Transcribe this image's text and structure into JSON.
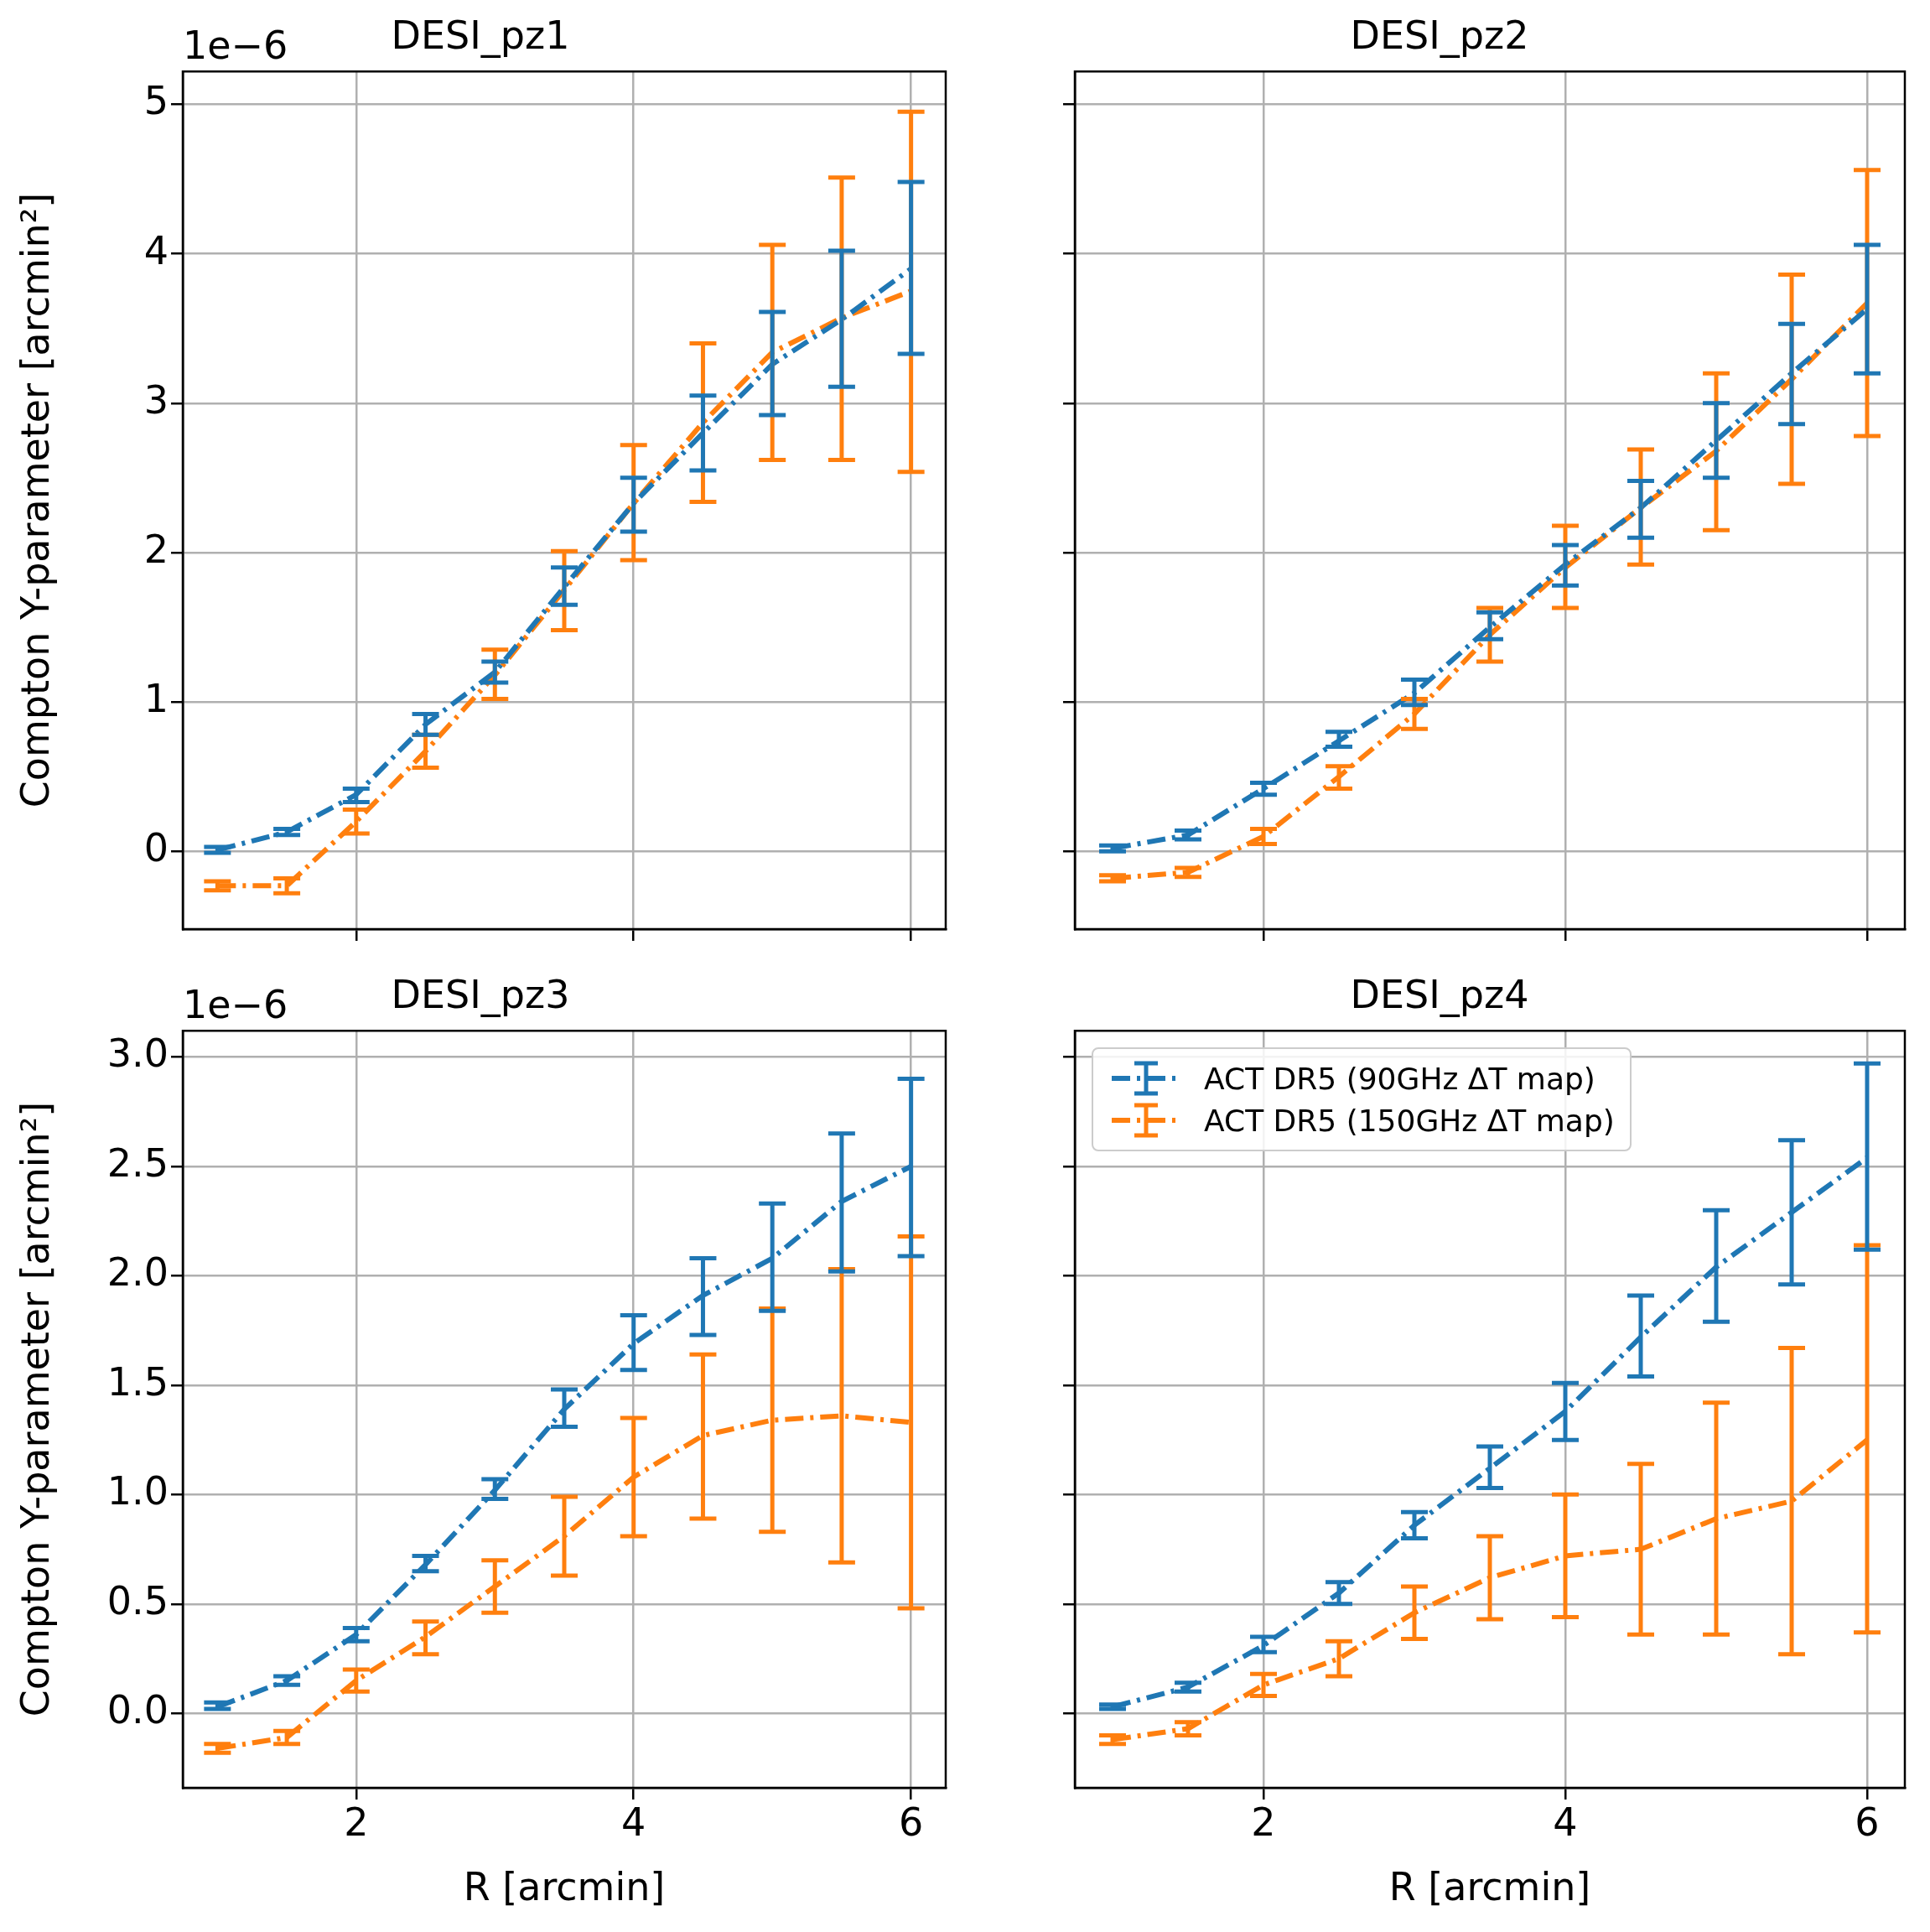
{
  "chart_data": [
    {
      "type": "line",
      "title": "DESI_pz1",
      "ylabel": "Compton Y-parameter [arcmin²]",
      "annotations": [
        "1e−6"
      ],
      "x": [
        1,
        1.5,
        2,
        2.5,
        3,
        3.5,
        4,
        4.5,
        5,
        5.5,
        6
      ],
      "xlim": [
        0.75,
        6.25
      ],
      "xticks": [
        2,
        4,
        6
      ],
      "ylim": [
        -0.52,
        5.22
      ],
      "yticks": [
        0,
        1,
        2,
        3,
        4,
        5
      ],
      "grid": true,
      "tick_labels": "y",
      "line_style": "dashdot",
      "series": [
        {
          "color": "#1f77b4",
          "values": [
            0.01,
            0.13,
            0.38,
            0.85,
            1.2,
            1.77,
            2.33,
            2.8,
            3.26,
            3.56,
            3.9
          ],
          "errors": [
            [
              -0.01,
              0.03
            ],
            [
              0.11,
              0.15
            ],
            [
              0.33,
              0.42
            ],
            [
              0.78,
              0.92
            ],
            [
              1.13,
              1.27
            ],
            [
              1.65,
              1.9
            ],
            [
              2.14,
              2.5
            ],
            [
              2.55,
              3.05
            ],
            [
              2.92,
              3.61
            ],
            [
              3.11,
              4.02
            ],
            [
              3.33,
              4.48
            ]
          ]
        },
        {
          "color": "#ff7f0e",
          "values": [
            -0.23,
            -0.23,
            0.2,
            0.67,
            1.18,
            1.75,
            2.33,
            2.87,
            3.34,
            3.57,
            3.75
          ],
          "errors": [
            [
              -0.26,
              -0.2
            ],
            [
              -0.28,
              -0.18
            ],
            [
              0.12,
              0.28
            ],
            [
              0.56,
              0.78
            ],
            [
              1.02,
              1.35
            ],
            [
              1.48,
              2.01
            ],
            [
              1.95,
              2.72
            ],
            [
              2.34,
              3.4
            ],
            [
              2.62,
              4.06
            ],
            [
              2.62,
              4.51
            ],
            [
              2.54,
              4.95
            ]
          ]
        }
      ]
    },
    {
      "type": "line",
      "title": "DESI_pz2",
      "x": [
        1,
        1.5,
        2,
        2.5,
        3,
        3.5,
        4,
        4.5,
        5,
        5.5,
        6
      ],
      "xlim": [
        0.75,
        6.25
      ],
      "xticks": [
        2,
        4,
        6
      ],
      "ylim": [
        -0.52,
        5.22
      ],
      "yticks": [
        0,
        1,
        2,
        3,
        4,
        5
      ],
      "grid": true,
      "tick_labels": false,
      "line_style": "dashdot",
      "series": [
        {
          "color": "#1f77b4",
          "values": [
            0.02,
            0.11,
            0.42,
            0.74,
            1.06,
            1.5,
            1.92,
            2.3,
            2.75,
            3.2,
            3.63
          ],
          "errors": [
            [
              0.0,
              0.04
            ],
            [
              0.08,
              0.14
            ],
            [
              0.38,
              0.46
            ],
            [
              0.7,
              0.8
            ],
            [
              0.98,
              1.15
            ],
            [
              1.42,
              1.6
            ],
            [
              1.78,
              2.05
            ],
            [
              2.1,
              2.48
            ],
            [
              2.5,
              3.0
            ],
            [
              2.86,
              3.53
            ],
            [
              3.2,
              4.06
            ]
          ]
        },
        {
          "color": "#ff7f0e",
          "values": [
            -0.18,
            -0.14,
            0.1,
            0.5,
            0.92,
            1.45,
            1.9,
            2.3,
            2.68,
            3.16,
            3.67
          ],
          "errors": [
            [
              -0.2,
              -0.16
            ],
            [
              -0.17,
              -0.11
            ],
            [
              0.05,
              0.15
            ],
            [
              0.42,
              0.57
            ],
            [
              0.82,
              1.02
            ],
            [
              1.27,
              1.63
            ],
            [
              1.63,
              2.18
            ],
            [
              1.92,
              2.69
            ],
            [
              2.15,
              3.2
            ],
            [
              2.46,
              3.86
            ],
            [
              2.78,
              4.56
            ]
          ]
        }
      ]
    },
    {
      "type": "line",
      "title": "DESI_pz3",
      "xlabel": "R [arcmin]",
      "ylabel": "Compton Y-parameter [arcmin²]",
      "annotations": [
        "1e−6"
      ],
      "x": [
        1,
        1.5,
        2,
        2.5,
        3,
        3.5,
        4,
        4.5,
        5,
        5.5,
        6
      ],
      "xlim": [
        0.75,
        6.25
      ],
      "xticks": [
        2,
        4,
        6
      ],
      "ylim": [
        -0.34,
        3.12
      ],
      "yticks": [
        {
          "value": 0,
          "label": "0.0"
        },
        0.5,
        {
          "value": 1,
          "label": "1.0"
        },
        1.5,
        {
          "value": 2,
          "label": "2.0"
        },
        2.5,
        {
          "value": 3,
          "label": "3.0"
        }
      ],
      "grid": true,
      "line_style": "dashdot",
      "series": [
        {
          "color": "#1f77b4",
          "values": [
            0.03,
            0.15,
            0.36,
            0.68,
            1.02,
            1.39,
            1.69,
            1.91,
            2.08,
            2.34,
            2.5
          ],
          "errors": [
            [
              0.02,
              0.05
            ],
            [
              0.13,
              0.17
            ],
            [
              0.33,
              0.39
            ],
            [
              0.65,
              0.72
            ],
            [
              0.98,
              1.07
            ],
            [
              1.31,
              1.48
            ],
            [
              1.57,
              1.82
            ],
            [
              1.73,
              2.08
            ],
            [
              1.84,
              2.33
            ],
            [
              2.02,
              2.65
            ],
            [
              2.09,
              2.9
            ]
          ]
        },
        {
          "color": "#ff7f0e",
          "values": [
            -0.16,
            -0.11,
            0.15,
            0.35,
            0.58,
            0.81,
            1.08,
            1.27,
            1.34,
            1.36,
            1.33
          ],
          "errors": [
            [
              -0.18,
              -0.14
            ],
            [
              -0.14,
              -0.08
            ],
            [
              0.1,
              0.2
            ],
            [
              0.27,
              0.42
            ],
            [
              0.46,
              0.7
            ],
            [
              0.63,
              0.99
            ],
            [
              0.81,
              1.35
            ],
            [
              0.89,
              1.64
            ],
            [
              0.83,
              1.85
            ],
            [
              0.69,
              2.03
            ],
            [
              0.48,
              2.18
            ]
          ]
        }
      ]
    },
    {
      "type": "line",
      "title": "DESI_pz4",
      "xlabel": "R [arcmin]",
      "legend": "top left",
      "x": [
        1,
        1.5,
        2,
        2.5,
        3,
        3.5,
        4,
        4.5,
        5,
        5.5,
        6
      ],
      "xlim": [
        0.75,
        6.25
      ],
      "xticks": [
        2,
        4,
        6
      ],
      "ylim": [
        -0.34,
        3.12
      ],
      "yticks": [
        0,
        0.5,
        1,
        1.5,
        2,
        2.5,
        3
      ],
      "grid": true,
      "tick_labels": "x",
      "line_style": "dashdot",
      "series": [
        {
          "name": "ACT DR5 (90GHz ΔT map)",
          "color": "#1f77b4",
          "values": [
            0.03,
            0.12,
            0.31,
            0.55,
            0.86,
            1.12,
            1.38,
            1.72,
            2.04,
            2.29,
            2.54
          ],
          "errors": [
            [
              0.02,
              0.04
            ],
            [
              0.1,
              0.14
            ],
            [
              0.28,
              0.35
            ],
            [
              0.5,
              0.6
            ],
            [
              0.8,
              0.92
            ],
            [
              1.03,
              1.22
            ],
            [
              1.25,
              1.51
            ],
            [
              1.54,
              1.91
            ],
            [
              1.79,
              2.3
            ],
            [
              1.96,
              2.62
            ],
            [
              2.12,
              2.97
            ]
          ]
        },
        {
          "name": "ACT DR5 (150GHz ΔT map)",
          "color": "#ff7f0e",
          "values": [
            -0.12,
            -0.07,
            0.13,
            0.25,
            0.46,
            0.62,
            0.72,
            0.75,
            0.89,
            0.97,
            1.25
          ],
          "errors": [
            [
              -0.14,
              -0.1
            ],
            [
              -0.1,
              -0.04
            ],
            [
              0.08,
              0.18
            ],
            [
              0.17,
              0.33
            ],
            [
              0.34,
              0.58
            ],
            [
              0.43,
              0.81
            ],
            [
              0.44,
              1.0
            ],
            [
              0.36,
              1.14
            ],
            [
              0.36,
              1.42
            ],
            [
              0.27,
              1.67
            ],
            [
              0.37,
              2.14
            ]
          ]
        }
      ]
    }
  ]
}
